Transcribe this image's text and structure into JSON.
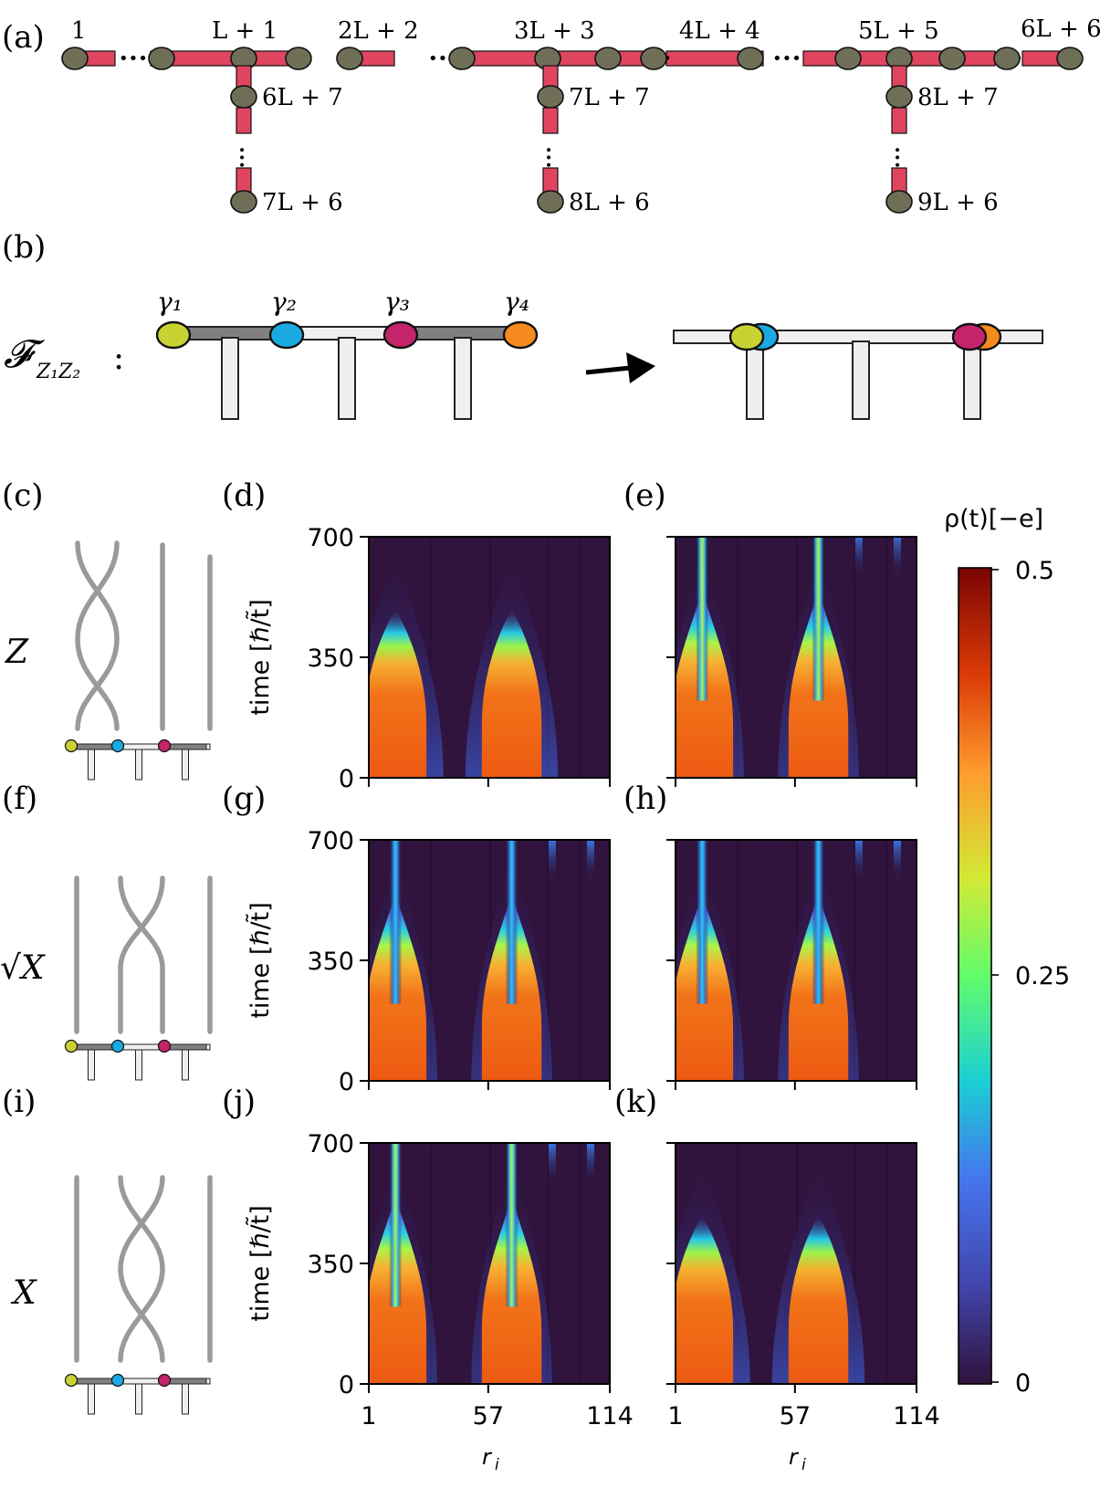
{
  "panel_labels": {
    "a": "(a)",
    "b": "(b)",
    "c": "(c)",
    "d": "(d)",
    "e": "(e)",
    "f": "(f)",
    "g": "(g)",
    "h": "(h)",
    "i": "(i)",
    "j": "(j)",
    "k": "(k)"
  },
  "chain": {
    "top_sites": [
      "1",
      "L + 1",
      "2L + 2",
      "3L + 3",
      "4L + 4",
      "5L + 5",
      "6L + 6"
    ],
    "leg_top_sites": [
      "6L + 7",
      "7L + 7",
      "8L + 7"
    ],
    "leg_bottom_sites": [
      "7L + 6",
      "8L + 6",
      "9L + 6"
    ],
    "ellipsis": "•••",
    "colors": {
      "bond": "#e04560",
      "site": "#6f6f58"
    }
  },
  "braid": {
    "operator_label": "𝓕",
    "operator_subscript": "Z₁Z₂",
    "operator_colon": ":",
    "majoranas": [
      {
        "label": "γ₁",
        "color": "#c8d232"
      },
      {
        "label": "γ₂",
        "color": "#1ba9e1"
      },
      {
        "label": "γ₃",
        "color": "#c3246a"
      },
      {
        "label": "γ₄",
        "color": "#f58a1f"
      }
    ]
  },
  "gates": {
    "c": "Z",
    "f": "√X",
    "i": "X"
  },
  "heatmaps": {
    "ylabel": "time [ℏ/t̃]",
    "xlabel": "r",
    "xlabel_sub": "i",
    "yticks": [
      "0",
      "350",
      "700"
    ],
    "xticks": [
      "1",
      "57",
      "114"
    ]
  },
  "colorbar": {
    "title": "ρ(t)[−e]",
    "ticks": [
      "0",
      "0.25",
      "0.5"
    ]
  },
  "chart_data": [
    {
      "type": "heatmap",
      "panel": "(d)",
      "x_range": [
        1,
        114
      ],
      "y_range": [
        0,
        700
      ],
      "z_range": [
        0,
        0.5
      ],
      "persistent_stripes": false,
      "ylabel": "time [ℏ/t̃]"
    },
    {
      "type": "heatmap",
      "panel": "(e)",
      "x_range": [
        1,
        114
      ],
      "y_range": [
        0,
        700
      ],
      "z_range": [
        0,
        0.5
      ],
      "persistent_stripes": true
    },
    {
      "type": "heatmap",
      "panel": "(g)",
      "x_range": [
        1,
        114
      ],
      "y_range": [
        0,
        700
      ],
      "z_range": [
        0,
        0.5
      ],
      "persistent_stripes": true,
      "ylabel": "time [ℏ/t̃]"
    },
    {
      "type": "heatmap",
      "panel": "(h)",
      "x_range": [
        1,
        114
      ],
      "y_range": [
        0,
        700
      ],
      "z_range": [
        0,
        0.5
      ],
      "persistent_stripes": true
    },
    {
      "type": "heatmap",
      "panel": "(j)",
      "x_range": [
        1,
        114
      ],
      "y_range": [
        0,
        700
      ],
      "z_range": [
        0,
        0.5
      ],
      "persistent_stripes": true,
      "ylabel": "time [ℏ/t̃]",
      "xlabel": "r_i"
    },
    {
      "type": "heatmap",
      "panel": "(k)",
      "x_range": [
        1,
        114
      ],
      "y_range": [
        0,
        700
      ],
      "z_range": [
        0,
        0.5
      ],
      "persistent_stripes": false,
      "xlabel": "r_i"
    }
  ]
}
